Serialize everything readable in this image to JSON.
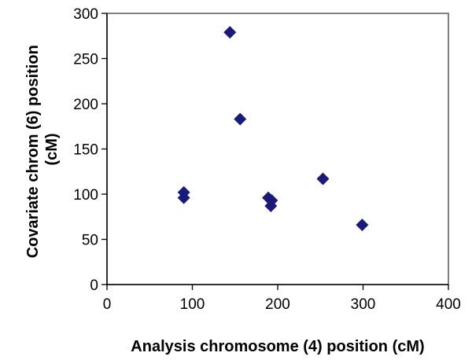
{
  "chart_data": {
    "type": "scatter",
    "title": "",
    "xlabel": "Analysis chromosome (4) position (cM)",
    "ylabel_line1": "Covariate chrom (6) position",
    "ylabel_line2": "(cM)",
    "xlim": [
      0,
      400
    ],
    "ylim": [
      0,
      300
    ],
    "x_ticks": [
      0,
      100,
      200,
      300,
      400
    ],
    "y_ticks": [
      0,
      50,
      100,
      150,
      200,
      250,
      300
    ],
    "grid": false,
    "legend": "none",
    "marker": "diamond",
    "marker_color": "#1a1a7a",
    "axis_color": "#808080",
    "points": [
      {
        "x": 90,
        "y": 102
      },
      {
        "x": 90,
        "y": 96
      },
      {
        "x": 144,
        "y": 279
      },
      {
        "x": 156,
        "y": 183
      },
      {
        "x": 189,
        "y": 96
      },
      {
        "x": 193,
        "y": 93
      },
      {
        "x": 192,
        "y": 87
      },
      {
        "x": 253,
        "y": 117
      },
      {
        "x": 299,
        "y": 66
      }
    ]
  }
}
